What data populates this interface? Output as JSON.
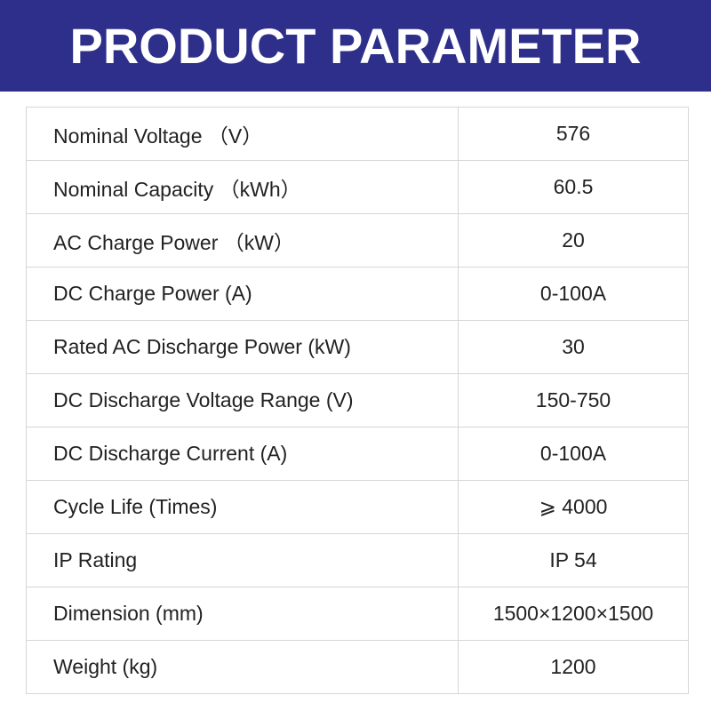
{
  "header": {
    "title": "PRODUCT PARAMETER",
    "background_color": "#2e2f8a",
    "text_color": "#ffffff"
  },
  "parameters": [
    {
      "label": "Nominal  Voltage （V）",
      "value": "576"
    },
    {
      "label": "Nominal Capacity （kWh）",
      "value": "60.5"
    },
    {
      "label": "AC Charge Power （kW）",
      "value": "20"
    },
    {
      "label": "DC Charge Power (A)",
      "value": "0-100A"
    },
    {
      "label": "Rated AC Discharge Power (kW)",
      "value": "30"
    },
    {
      "label": "DC Discharge Voltage Range (V)",
      "value": "150-750"
    },
    {
      "label": "DC Discharge Current (A)",
      "value": "0-100A"
    },
    {
      "label": "Cycle Life (Times)",
      "value": "⩾ 4000"
    },
    {
      "label": "IP Rating",
      "value": "IP 54"
    },
    {
      "label": "Dimension (mm)",
      "value": "1500×1200×1500"
    },
    {
      "label": "Weight (kg)",
      "value": "1200"
    }
  ]
}
